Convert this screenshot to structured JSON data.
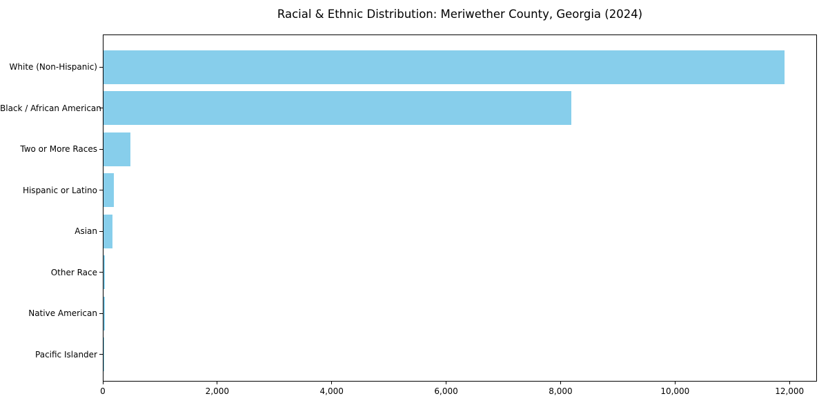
{
  "chart_data": {
    "type": "bar",
    "orientation": "horizontal",
    "title": "Racial & Ethnic Distribution: Meriwether County, Georgia (2024)",
    "categories": [
      "White (Non-Hispanic)",
      "Black / African American",
      "Two or More Races",
      "Hispanic or Latino",
      "Asian",
      "Other Race",
      "Native American",
      "Pacific Islander"
    ],
    "values": [
      11900,
      8170,
      470,
      180,
      155,
      30,
      20,
      10
    ],
    "bar_color": "#87CEEB",
    "xlabel": "",
    "ylabel": "",
    "xlim": [
      0,
      12480
    ],
    "xticks": [
      0,
      2000,
      4000,
      6000,
      8000,
      10000,
      12000
    ],
    "xtick_labels": [
      "0",
      "2,000",
      "4,000",
      "6,000",
      "8,000",
      "10,000",
      "12,000"
    ],
    "grid": false,
    "legend": null,
    "background": "#ffffff",
    "text_color": "#000000"
  }
}
